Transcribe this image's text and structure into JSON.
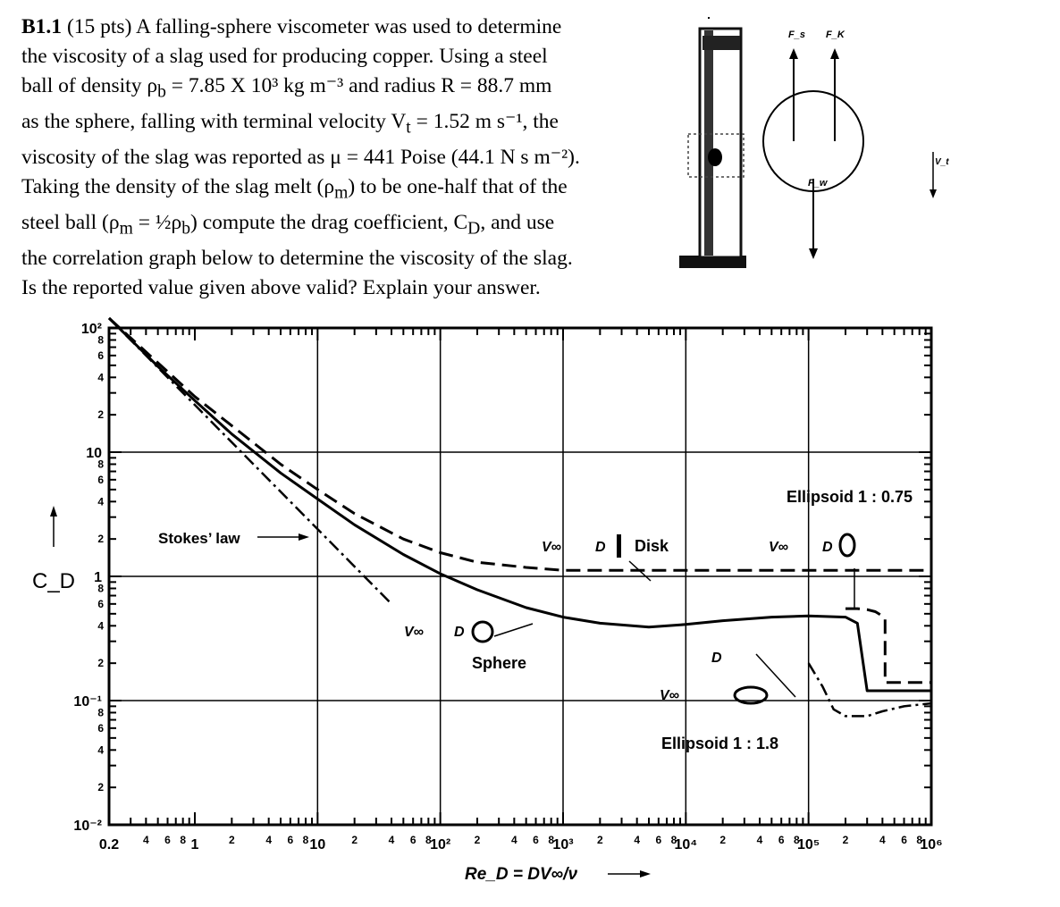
{
  "problem": {
    "lines": [
      {
        "label": "B1.1",
        "text": " (15 pts) A falling-sphere viscometer was used to determine"
      },
      {
        "text": "the viscosity of a slag used for producing copper. Using a steel"
      },
      {
        "text": "ball of density ρ_b = 7.85 X 10³ kg m⁻³ and radius R = 88.7 mm"
      },
      {
        "text": "as the sphere, falling with terminal velocity V_t = 1.52 m s⁻¹, the"
      },
      {
        "text": "viscosity of the slag was reported as μ = 441 Poise (44.1 N s m⁻²)."
      },
      {
        "text": "Taking the density of the slag melt (ρ_m) to be one-half that of the"
      },
      {
        "text": "steel ball (ρ_m = ½ρ_b) compute the drag coefficient, C_D, and use"
      },
      {
        "text": "the correlation graph below to determine the viscosity of the slag."
      },
      {
        "text": "Is the reported value given above valid? Explain your answer."
      }
    ]
  },
  "diagram": {
    "force_labels": [
      "F_s",
      "F_K",
      "F_w"
    ],
    "velocity_label": "V_t"
  },
  "chart_data": {
    "type": "line",
    "xscale": "log",
    "yscale": "log",
    "xlim": [
      0.2,
      1000000
    ],
    "ylim": [
      0.01,
      100
    ],
    "ylabel": "C_D",
    "xlabel": "Re_D = DV∞/ν",
    "x_tick_labels": [
      "0.2",
      "4",
      "6",
      "8",
      "1",
      "2",
      "4",
      "6",
      "8",
      "10",
      "2",
      "4",
      "6",
      "8",
      "10²",
      "2",
      "4",
      "6",
      "8",
      "10³",
      "2",
      "4",
      "6",
      "8",
      "10⁴",
      "2",
      "4",
      "6",
      "8",
      "10⁵",
      "2",
      "4",
      "6",
      "8",
      "10⁶"
    ],
    "y_tick_labels": [
      "10⁻²",
      "2",
      "4",
      "6",
      "8",
      "10⁻¹",
      "2",
      "4",
      "6",
      "8",
      "1",
      "2",
      "4",
      "6",
      "8",
      "10",
      "2",
      "4",
      "6",
      "8",
      "10²"
    ],
    "annotations": [
      "Stokes’ law",
      "Sphere",
      "Disk",
      "Ellipsoid 1 : 0.75",
      "Ellipsoid 1 : 1.8",
      "V∞",
      "D"
    ],
    "series": [
      {
        "name": "Sphere",
        "style": "solid",
        "x": [
          0.2,
          0.5,
          1,
          2,
          5,
          10,
          20,
          50,
          100,
          200,
          500,
          1000,
          2000,
          5000,
          10000,
          20000,
          50000,
          100000,
          200000,
          250000,
          300000,
          400000,
          1000000
        ],
        "y": [
          120,
          49,
          26,
          14,
          6.8,
          4.2,
          2.6,
          1.5,
          1.05,
          0.78,
          0.56,
          0.47,
          0.42,
          0.39,
          0.41,
          0.44,
          0.47,
          0.48,
          0.47,
          0.42,
          0.12,
          0.12,
          0.12
        ]
      },
      {
        "name": "Stokes’ law",
        "style": "dash-dot",
        "x": [
          0.2,
          40
        ],
        "y": [
          120,
          0.6
        ]
      },
      {
        "name": "Disk",
        "style": "dashed",
        "x": [
          0.2,
          1,
          5,
          10,
          20,
          50,
          100,
          200,
          500,
          1000,
          10000,
          100000,
          1000000
        ],
        "y": [
          120,
          28,
          8,
          5,
          3.2,
          2,
          1.55,
          1.3,
          1.18,
          1.12,
          1.12,
          1.12,
          1.12
        ]
      },
      {
        "name": "Ellipsoid 1 : 0.75",
        "style": "dashed",
        "x": [
          200000,
          250000,
          300000,
          350000,
          400000,
          420000,
          420000,
          1000000
        ],
        "y": [
          0.55,
          0.55,
          0.54,
          0.52,
          0.48,
          0.45,
          0.14,
          0.14
        ]
      },
      {
        "name": "Ellipsoid 1 : 1.8",
        "style": "dash-dot",
        "x": [
          100000,
          130000,
          160000,
          200000,
          300000,
          400000,
          600000,
          1000000
        ],
        "y": [
          0.2,
          0.13,
          0.085,
          0.075,
          0.075,
          0.082,
          0.09,
          0.095
        ]
      }
    ]
  }
}
